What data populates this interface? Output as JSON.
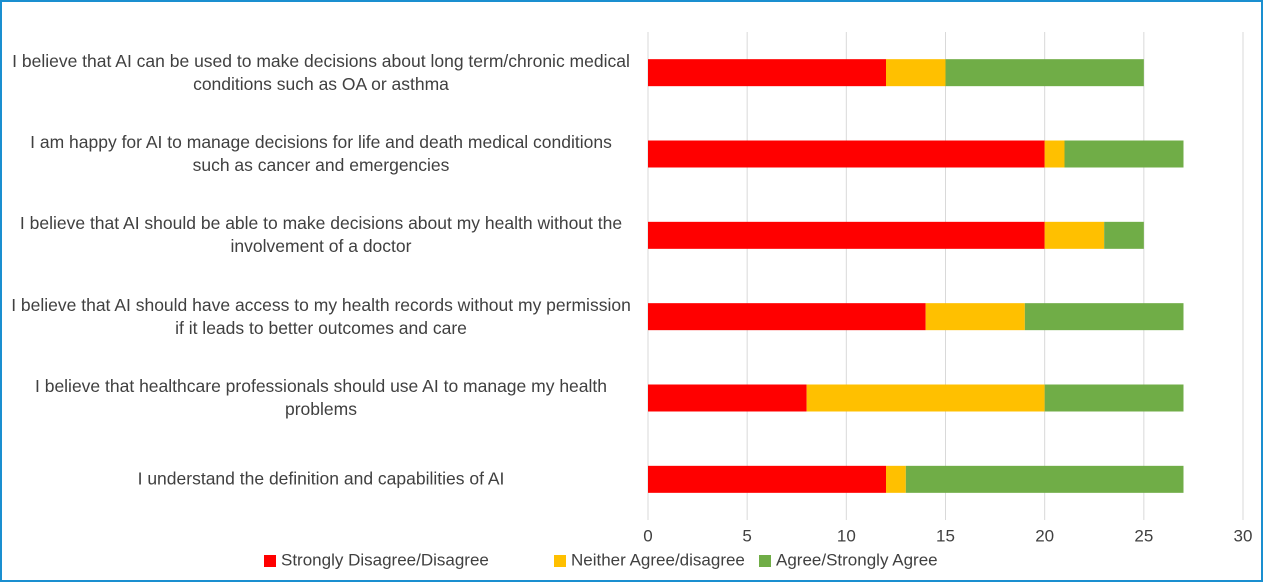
{
  "chart_data": {
    "type": "stacked-bar-horizontal",
    "categories": [
      "I believe that AI can be used to make decisions about long term/chronic medical conditions such as OA or asthma",
      "I am happy for AI to manage decisions for life and death medical conditions such as cancer and emergencies",
      "I believe that AI should be able to make decisions about my health without the involvement of a doctor",
      "I believe that AI should have access to my health records without my permission if it leads to better outcomes and care",
      "I believe that healthcare professionals should use AI to manage my health problems",
      "I understand the definition and capabilities of AI"
    ],
    "series": [
      {
        "name": "Strongly Disagree/Disagree",
        "color": "#ff0000",
        "values": [
          12,
          20,
          20,
          14,
          8,
          12
        ]
      },
      {
        "name": "Neither Agree/disagree",
        "color": "#ffc000",
        "values": [
          3,
          1,
          3,
          5,
          12,
          1
        ]
      },
      {
        "name": "Agree/Strongly Agree",
        "color": "#70ad47",
        "values": [
          10,
          6,
          2,
          8,
          7,
          14
        ]
      }
    ],
    "xlim": [
      0,
      30
    ],
    "xticks": [
      0,
      5,
      10,
      15,
      20,
      25,
      30
    ],
    "grid": true,
    "legend": "bottom"
  }
}
